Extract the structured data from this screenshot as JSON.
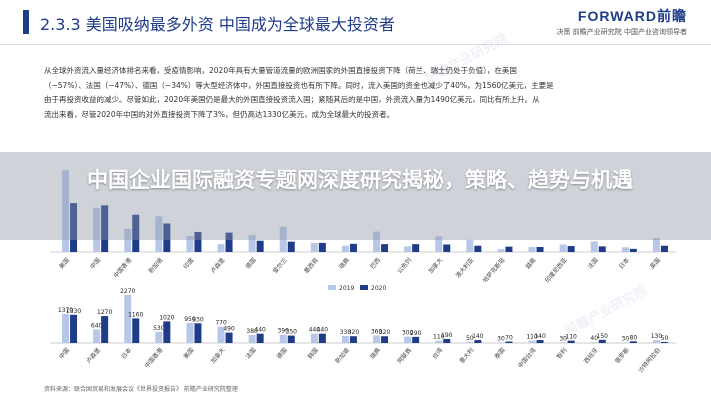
{
  "header": {
    "title": "2.3.3 美国吸纳最多外资 中国成为全球最大投资者",
    "logo_main": "FORWARD前瞻",
    "logo_sub": "决策 前瞻产业研究院 中国产业咨询领导者"
  },
  "body": {
    "lines": [
      "从全球外资流入量经济体排名来看，受疫情影响，2020年具有大量管道流量的欧洲国家的外国直接投资下降（荷兰、瑞士仍处于负值），在美国",
      "（−57%）、法国（−47%）、德国（−34%）等大型经济体中，外国直接投资也有所下降。同时，流入美国的资金也减少了40%，为1560亿美元，主要是",
      "由于再投资收益的减少。尽管如此，2020年美国仍是最大的外国直接投资流入国；紧随其后的是中国，外资流入量为1490亿美元，同比有所上升。从",
      "流出来看，尽管2020年中国的对外直接投资下降了3%，但仍高达1330亿美元，成为全球最大的投资者。"
    ]
  },
  "banner": {
    "title": "中国企业国际融资专题网深度研究揭秘，策略、趋势与机遇"
  },
  "legend": {
    "series_a": "2019",
    "series_b": "2020",
    "color_a": "#b7c7ea",
    "color_b": "#1f3c88"
  },
  "source_text": "资料来源：联合国贸易和发展会议《世界投资报告》 前瞻产业研究院整理",
  "watermark": "前瞻产业研究院",
  "chart_data": [
    {
      "type": "bar",
      "title": "",
      "categories": [
        "美国",
        "中国",
        "中国香港",
        "新加坡",
        "印度",
        "卢森堡",
        "德国",
        "爱尔兰",
        "墨西哥",
        "瑞典",
        "巴西",
        "以色列",
        "加拿大",
        "澳大利亚",
        "哈萨克斯坦",
        "越南",
        "印度尼西亚",
        "法国",
        "日本",
        "英国"
      ],
      "series": [
        {
          "name": "2019",
          "values": [
            261,
            141,
            74,
            114,
            51,
            25,
            54,
            81,
            29,
            20,
            65,
            18,
            50,
            39,
            9,
            16,
            24,
            34,
            15,
            45
          ]
        },
        {
          "name": "2020",
          "values": [
            156,
            149,
            119,
            91,
            64,
            62,
            36,
            33,
            29,
            26,
            25,
            25,
            24,
            20,
            17,
            16,
            19,
            18,
            10,
            20
          ]
        }
      ],
      "ylim": [
        0,
        300
      ],
      "xlabel": "",
      "ylabel": ""
    },
    {
      "type": "bar",
      "title": "",
      "categories": [
        "中国",
        "卢森堡",
        "日本",
        "中国香港",
        "美国",
        "加拿大",
        "法国",
        "德国",
        "韩国",
        "新加坡",
        "瑞典",
        "阿联酋",
        "台湾",
        "意大利",
        "泰国",
        "中国台湾",
        "智利",
        "西班牙",
        "俄罗斯",
        "沙特阿拉伯"
      ],
      "series": [
        {
          "name": "2019",
          "values": [
            1370,
            640,
            2270,
            530,
            950,
            770,
            380,
            390,
            440,
            330,
            360,
            300,
            110,
            50,
            30,
            110,
            30,
            40,
            30,
            130
          ]
        },
        {
          "name": "2020",
          "values": [
            1330,
            1270,
            1160,
            1020,
            930,
            490,
            440,
            350,
            440,
            320,
            320,
            290,
            190,
            140,
            70,
            140,
            110,
            150,
            80,
            50
          ]
        }
      ],
      "data_labels": [
        "1370",
        "1330",
        "640",
        "1270",
        "2270",
        "1160",
        "530",
        "1020",
        "950",
        "930",
        "770",
        "490",
        "380",
        "440",
        "390",
        "350",
        "440",
        "440",
        "330",
        "320",
        "360",
        "320",
        "300",
        "290",
        "110",
        "190",
        "50",
        "140",
        "30",
        "70",
        "110",
        "140",
        "30",
        "110",
        "40",
        "150",
        "30",
        "80",
        "130",
        "50"
      ],
      "ylim": [
        0,
        2500
      ],
      "xlabel": "",
      "ylabel": ""
    }
  ]
}
